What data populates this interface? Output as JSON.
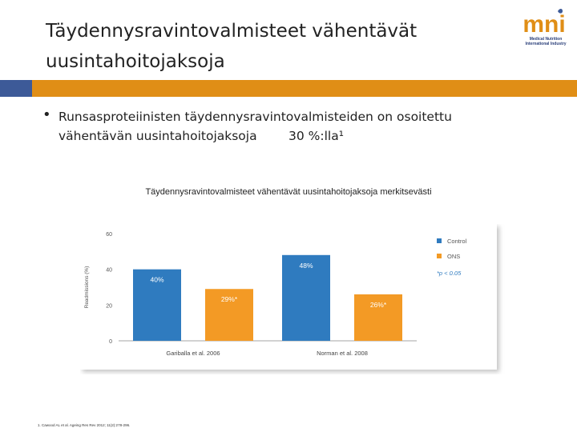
{
  "slide": {
    "title_line1": "Täydennysravintovalmisteet vähentävät",
    "title_line2": "uusintahoitojaksoja",
    "bullet_line1": "Runsasproteiinisten täydennysravintovalmisteiden on osoitettu",
    "bullet_line2": "vähentävän uusintahoitojaksoja        30 %:lla¹",
    "chart_title": "Täydennysravintovalmisteet vähentävät uusintahoitojaksoja merkitsevästi",
    "footnote": "1. Cawood AL et al. Ageing Res Rev 2012; 11(2):278-296."
  },
  "logo": {
    "letters": "mni",
    "line1": "Medical Nutrition",
    "line2": "International Industry"
  },
  "colors": {
    "blue": "#2f7bbf",
    "orange": "#f39a25",
    "header_blue": "#3d5a98",
    "header_orange": "#e08e16"
  },
  "chart_data": {
    "type": "bar",
    "categories": [
      "Gariballa et al. 2006",
      "Norman et al. 2008"
    ],
    "series": [
      {
        "name": "Control",
        "values": [
          40,
          48
        ]
      },
      {
        "name": "ONS",
        "values": [
          29,
          26
        ]
      }
    ],
    "data_labels": [
      [
        "40%",
        "48%"
      ],
      [
        "29%*",
        "26%*"
      ]
    ],
    "ylabel": "Readmissions (%)",
    "ylim": [
      0,
      60
    ],
    "yticks": [
      "0",
      "20",
      "40",
      "60"
    ],
    "legend_position": "right",
    "annotation": "*p < 0.05"
  }
}
